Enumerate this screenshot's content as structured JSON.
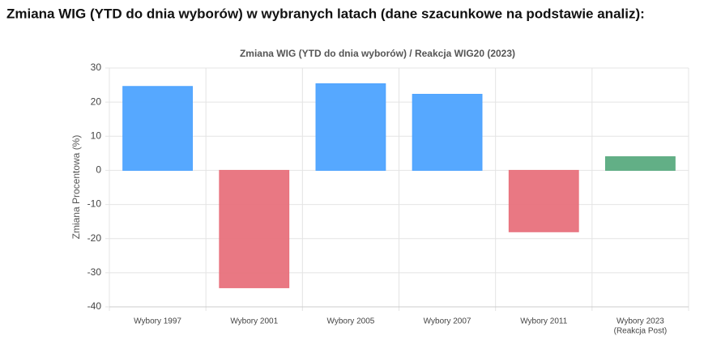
{
  "heading": "Zmiana WIG (YTD do dnia wyborów) w wybranych latach (dane szacunkowe na podstawie analiz):",
  "chart_data": {
    "type": "bar",
    "title": "Zmiana WIG (YTD do dnia wyborów) / Reakcja WIG20 (2023)",
    "y_label": "Zmiana Procentowa (%)",
    "categories": [
      "Wybory 1997",
      "Wybory 2001",
      "Wybory 2005",
      "Wybory 2007",
      "Wybory 2011",
      [
        "Wybory 2023",
        "(Reakcja Post)"
      ]
    ],
    "values": [
      24.6,
      -34.4,
      25.4,
      22.3,
      -18.0,
      4.0
    ],
    "colors": [
      "#4da3ff",
      "#e8717c",
      "#4da3ff",
      "#4da3ff",
      "#e8717c",
      "#5aab80"
    ],
    "ylim": [
      -40,
      30
    ],
    "yticks": [
      -40,
      -30,
      -20,
      -10,
      0,
      10,
      20,
      30
    ],
    "grid": true
  }
}
